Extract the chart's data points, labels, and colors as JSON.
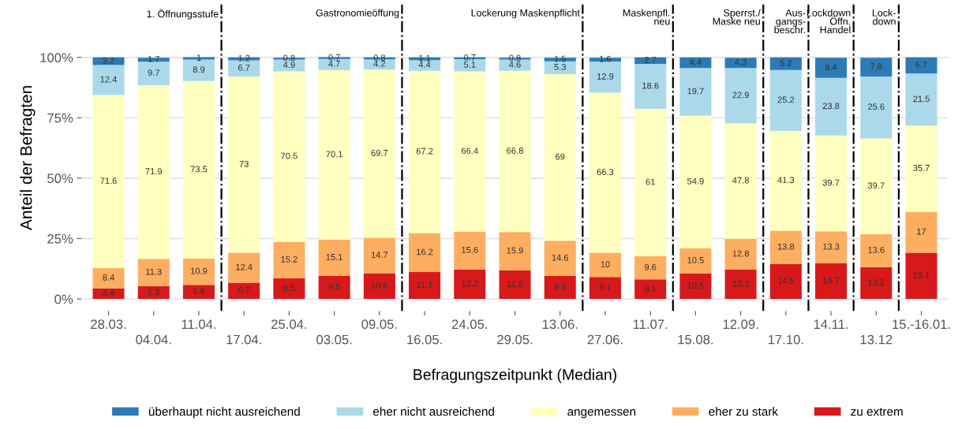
{
  "chart_data": {
    "type": "bar",
    "stacked": true,
    "data_labels": true,
    "grid": "y",
    "legend": "bottom",
    "xlabel": "Befragungszeitpunkt (Median)",
    "ylabel": "Anteil der Befragten",
    "categories": [
      "28.03.",
      "04.04.",
      "11.04.",
      "17.04.",
      "25.04.",
      "03.05.",
      "09.05.",
      "16.05.",
      "24.05.",
      "29.05.",
      "13.06.",
      "27.06.",
      "11.07.",
      "15.08.",
      "12.09.",
      "17.10.",
      "14.11.",
      "13.12",
      "15.-16.01."
    ],
    "ylim": [
      -5,
      122
    ],
    "yticks": [
      {
        "value": 0,
        "label": "0%"
      },
      {
        "value": 25,
        "label": "25%"
      },
      {
        "value": 50,
        "label": "50%"
      },
      {
        "value": 75,
        "label": "75%"
      },
      {
        "value": 100,
        "label": "100%"
      }
    ],
    "series": [
      {
        "name": "zu extrem",
        "color": "#d7191c",
        "values": [
          4.4,
          5.3,
          5.8,
          6.7,
          8.5,
          9.5,
          10.6,
          11.1,
          12.2,
          11.8,
          9.5,
          9.1,
          8.1,
          10.5,
          12.1,
          14.5,
          14.7,
          13.2,
          19.1
        ]
      },
      {
        "name": "eher zu stark",
        "color": "#fdae61",
        "values": [
          8.4,
          11.3,
          10.9,
          12.4,
          15.2,
          15.1,
          14.7,
          16.2,
          15.6,
          15.9,
          14.6,
          10,
          9.6,
          10.5,
          12.8,
          13.8,
          13.3,
          13.6,
          17
        ]
      },
      {
        "name": "angemessen",
        "color": "#ffffbf",
        "values": [
          71.6,
          71.9,
          73.5,
          73,
          70.5,
          70.1,
          69.7,
          67.2,
          66.4,
          66.8,
          69,
          66.3,
          61,
          54.9,
          47.8,
          41.3,
          39.7,
          39.7,
          35.7
        ]
      },
      {
        "name": "eher nicht ausreichend",
        "color": "#abd9e9",
        "values": [
          12.4,
          9.7,
          8.9,
          6.7,
          4.9,
          4.7,
          4.2,
          4.4,
          5.1,
          4.6,
          5.3,
          12.9,
          18.6,
          19.7,
          22.9,
          25.2,
          23.8,
          25.6,
          21.5
        ]
      },
      {
        "name": "überhaupt nicht ausreichend",
        "color": "#2c7bb6",
        "values": [
          3.2,
          1.7,
          1,
          1.2,
          0.8,
          0.7,
          0.8,
          1.1,
          0.7,
          0.8,
          1.5,
          1.6,
          2.7,
          4.4,
          4.3,
          5.2,
          8.4,
          7.8,
          6.7
        ]
      }
    ],
    "annotations": [
      "1. Öffnungsstufe",
      "Gastronomieöffung",
      "Lockerung Maskenpflicht",
      "Maskenpfl.\nneu",
      "Sperrst./\nMaske neu",
      "Aus-\ngangs-\nbeschr.",
      "Lockdown\nÖffn.\nHandel",
      "Lock-\ndown"
    ]
  }
}
